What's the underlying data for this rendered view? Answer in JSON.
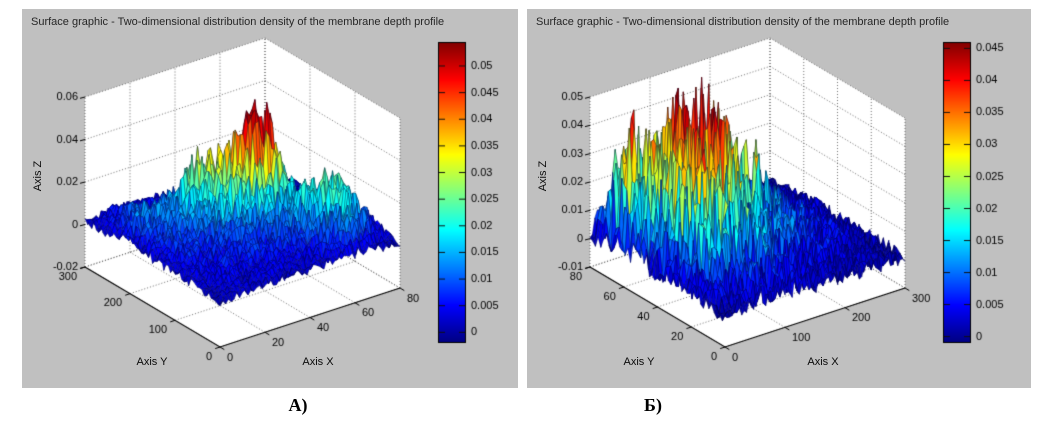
{
  "figure_labels": {
    "left": "А)",
    "right": "Б)"
  },
  "chart_data": [
    {
      "type": "surface",
      "panel_label": "А)",
      "title": "Surface graphic - Two-dimensional distribution density of the membrane depth profile",
      "xlabel": "Axis X",
      "ylabel": "Axis Y",
      "zlabel": "Axis Z",
      "x_range": [
        0,
        80
      ],
      "x_ticks": [
        0,
        20,
        40,
        60,
        80
      ],
      "x_tick_labels": [
        "0",
        "20",
        "40",
        "60",
        "80"
      ],
      "y_range": [
        0,
        300
      ],
      "y_ticks": [
        0,
        100,
        200,
        300
      ],
      "y_tick_labels": [
        "0",
        "100",
        "200",
        "300"
      ],
      "z_range": [
        -0.02,
        0.06
      ],
      "z_ticks": [
        -0.02,
        0,
        0.02,
        0.04,
        0.06
      ],
      "z_tick_labels": [
        "-0.02",
        "0",
        "0.02",
        "0.04",
        "0.06"
      ],
      "grid": true,
      "view": {
        "azimuth": -37.5,
        "elevation": 30
      },
      "colorbar": {
        "colormap": "jet",
        "position": "right",
        "clim": [
          -0.002,
          0.0545
        ],
        "ticks": [
          0,
          0.005,
          0.01,
          0.015,
          0.02,
          0.025,
          0.03,
          0.035,
          0.04,
          0.045,
          0.05
        ],
        "tick_labels": [
          "0",
          "0.005",
          "0.01",
          "0.015",
          "0.02",
          "0.025",
          "0.03",
          "0.035",
          "0.04",
          "0.045",
          "0.05"
        ]
      },
      "surface_grid": {
        "x": [
          0,
          5,
          10,
          15,
          20,
          25,
          30,
          35,
          40,
          45,
          50,
          55,
          60,
          65,
          70,
          75,
          80
        ],
        "y": [
          0,
          20,
          40,
          60,
          80,
          100,
          120,
          140,
          160,
          180,
          200,
          220,
          240,
          260,
          280,
          300
        ],
        "z_values": [
          [
            0.0,
            0.001,
            0.002,
            0.002,
            0.002,
            0.002,
            0.003,
            0.002,
            0.003,
            0.003,
            0.003,
            0.004,
            0.003,
            0.003,
            0.002,
            0.001,
            0.0
          ],
          [
            0.001,
            0.003,
            0.004,
            0.003,
            0.004,
            0.004,
            0.004,
            0.003,
            0.004,
            0.005,
            0.005,
            0.006,
            0.008,
            0.009,
            0.007,
            0.004,
            0.002
          ],
          [
            0.001,
            0.004,
            0.005,
            0.004,
            0.005,
            0.004,
            0.005,
            0.005,
            0.005,
            0.006,
            0.007,
            0.009,
            0.012,
            0.016,
            0.012,
            0.008,
            0.003
          ],
          [
            0.002,
            0.004,
            0.005,
            0.006,
            0.005,
            0.006,
            0.006,
            0.006,
            0.007,
            0.008,
            0.01,
            0.012,
            0.016,
            0.02,
            0.018,
            0.01,
            0.004
          ],
          [
            0.002,
            0.005,
            0.006,
            0.005,
            0.006,
            0.006,
            0.007,
            0.008,
            0.009,
            0.01,
            0.012,
            0.016,
            0.022,
            0.025,
            0.016,
            0.008,
            0.004
          ],
          [
            0.002,
            0.005,
            0.006,
            0.007,
            0.006,
            0.007,
            0.008,
            0.009,
            0.01,
            0.012,
            0.013,
            0.016,
            0.02,
            0.016,
            0.01,
            0.006,
            0.003
          ],
          [
            0.003,
            0.006,
            0.007,
            0.006,
            0.008,
            0.009,
            0.01,
            0.012,
            0.014,
            0.016,
            0.018,
            0.014,
            0.012,
            0.01,
            0.007,
            0.004,
            0.002
          ],
          [
            0.003,
            0.006,
            0.008,
            0.008,
            0.01,
            0.012,
            0.016,
            0.022,
            0.032,
            0.046,
            0.052,
            0.03,
            0.014,
            0.008,
            0.006,
            0.004,
            0.002
          ],
          [
            0.003,
            0.007,
            0.008,
            0.009,
            0.011,
            0.014,
            0.02,
            0.03,
            0.042,
            0.056,
            0.044,
            0.02,
            0.01,
            0.007,
            0.005,
            0.003,
            0.002
          ],
          [
            0.003,
            0.007,
            0.009,
            0.01,
            0.013,
            0.018,
            0.026,
            0.036,
            0.034,
            0.024,
            0.014,
            0.01,
            0.007,
            0.005,
            0.004,
            0.003,
            0.001
          ],
          [
            0.004,
            0.008,
            0.01,
            0.012,
            0.015,
            0.022,
            0.03,
            0.022,
            0.014,
            0.01,
            0.008,
            0.006,
            0.005,
            0.004,
            0.003,
            0.002,
            0.001
          ],
          [
            0.004,
            0.01,
            0.012,
            0.011,
            0.012,
            0.015,
            0.016,
            0.012,
            0.009,
            0.007,
            0.006,
            0.005,
            0.004,
            0.003,
            0.002,
            0.002,
            0.001
          ],
          [
            0.003,
            0.008,
            0.01,
            0.008,
            0.008,
            0.009,
            0.009,
            0.007,
            0.006,
            0.005,
            0.004,
            0.003,
            0.003,
            0.002,
            0.002,
            0.001,
            0.001
          ],
          [
            0.002,
            0.006,
            0.007,
            0.006,
            0.006,
            0.006,
            0.005,
            0.005,
            0.004,
            0.003,
            0.003,
            0.002,
            0.002,
            0.002,
            0.001,
            0.001,
            0.0
          ],
          [
            0.002,
            0.004,
            0.005,
            0.004,
            0.004,
            0.004,
            0.003,
            0.003,
            0.003,
            0.002,
            0.002,
            0.002,
            0.001,
            0.001,
            0.001,
            0.0,
            0.0
          ],
          [
            0.001,
            0.002,
            0.003,
            0.003,
            0.002,
            0.002,
            0.002,
            0.002,
            0.001,
            0.001,
            0.001,
            0.001,
            0.001,
            0.0,
            0.0,
            0.0,
            0.0
          ]
        ]
      },
      "render_hints": {
        "upsample": 4,
        "roughness": 0.5,
        "noise_floor": 0.0012,
        "seed": 3
      }
    },
    {
      "type": "surface",
      "panel_label": "Б)",
      "title": "Surface graphic - Two-dimensional distribution density of the membrane depth profile",
      "xlabel": "Axis X",
      "ylabel": "Axis Y",
      "zlabel": "Axis Z",
      "x_range": [
        0,
        300
      ],
      "x_ticks": [
        0,
        100,
        200,
        300
      ],
      "x_tick_labels": [
        "0",
        "100",
        "200",
        "300"
      ],
      "y_range": [
        0,
        80
      ],
      "y_ticks": [
        0,
        20,
        40,
        60,
        80
      ],
      "y_tick_labels": [
        "0",
        "20",
        "40",
        "60",
        "80"
      ],
      "z_range": [
        -0.01,
        0.05
      ],
      "z_ticks": [
        -0.01,
        0,
        0.01,
        0.02,
        0.03,
        0.04,
        0.05
      ],
      "z_tick_labels": [
        "-0.01",
        "0",
        "0.01",
        "0.02",
        "0.03",
        "0.04",
        "0.05"
      ],
      "grid": true,
      "view": {
        "azimuth": -37.5,
        "elevation": 30
      },
      "colorbar": {
        "colormap": "jet",
        "position": "right",
        "clim": [
          -0.001,
          0.046
        ],
        "ticks": [
          0,
          0.005,
          0.01,
          0.015,
          0.02,
          0.025,
          0.03,
          0.035,
          0.04,
          0.045
        ],
        "tick_labels": [
          "0",
          "0.005",
          "0.01",
          "0.015",
          "0.02",
          "0.025",
          "0.03",
          "0.035",
          "0.04",
          "0.045"
        ]
      },
      "surface_grid": {
        "x": [
          0,
          20,
          40,
          60,
          80,
          100,
          120,
          140,
          160,
          180,
          200,
          220,
          240,
          260,
          280,
          300
        ],
        "y": [
          0,
          8,
          16,
          24,
          32,
          40,
          48,
          56,
          64,
          72,
          80
        ],
        "z_values": [
          [
            0.0,
            0.002,
            0.002,
            0.003,
            0.002,
            0.003,
            0.003,
            0.002,
            0.002,
            0.002,
            0.002,
            0.001,
            0.001,
            0.001,
            0.001,
            0.0
          ],
          [
            0.001,
            0.004,
            0.005,
            0.006,
            0.005,
            0.006,
            0.005,
            0.004,
            0.004,
            0.003,
            0.003,
            0.003,
            0.002,
            0.002,
            0.001,
            0.001
          ],
          [
            0.002,
            0.006,
            0.008,
            0.01,
            0.008,
            0.01,
            0.008,
            0.007,
            0.006,
            0.005,
            0.004,
            0.004,
            0.003,
            0.002,
            0.002,
            0.001
          ],
          [
            0.002,
            0.008,
            0.014,
            0.016,
            0.012,
            0.014,
            0.011,
            0.009,
            0.008,
            0.007,
            0.006,
            0.005,
            0.004,
            0.003,
            0.002,
            0.001
          ],
          [
            0.003,
            0.01,
            0.018,
            0.024,
            0.02,
            0.022,
            0.016,
            0.012,
            0.01,
            0.008,
            0.007,
            0.006,
            0.004,
            0.003,
            0.002,
            0.001
          ],
          [
            0.003,
            0.012,
            0.022,
            0.03,
            0.024,
            0.036,
            0.03,
            0.02,
            0.022,
            0.012,
            0.009,
            0.007,
            0.005,
            0.004,
            0.002,
            0.001
          ],
          [
            0.004,
            0.014,
            0.026,
            0.028,
            0.032,
            0.046,
            0.034,
            0.026,
            0.014,
            0.01,
            0.009,
            0.007,
            0.005,
            0.004,
            0.003,
            0.001
          ],
          [
            0.004,
            0.016,
            0.03,
            0.024,
            0.044,
            0.032,
            0.022,
            0.016,
            0.012,
            0.009,
            0.007,
            0.006,
            0.004,
            0.003,
            0.002,
            0.001
          ],
          [
            0.003,
            0.038,
            0.024,
            0.018,
            0.028,
            0.02,
            0.016,
            0.012,
            0.009,
            0.007,
            0.006,
            0.004,
            0.003,
            0.002,
            0.002,
            0.001
          ],
          [
            0.002,
            0.02,
            0.012,
            0.01,
            0.014,
            0.012,
            0.01,
            0.008,
            0.006,
            0.005,
            0.004,
            0.003,
            0.002,
            0.002,
            0.001,
            0.0
          ],
          [
            0.001,
            0.006,
            0.005,
            0.004,
            0.005,
            0.004,
            0.004,
            0.003,
            0.002,
            0.002,
            0.002,
            0.001,
            0.001,
            0.001,
            0.0,
            0.0
          ]
        ]
      },
      "render_hints": {
        "upsample": 5,
        "roughness": 0.95,
        "noise_floor": 0.0018,
        "seed": 11
      }
    }
  ]
}
